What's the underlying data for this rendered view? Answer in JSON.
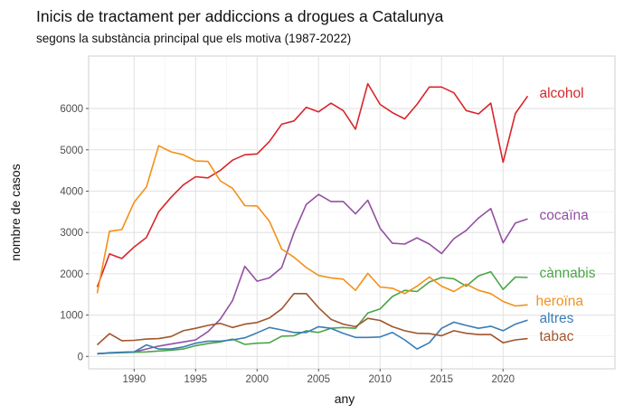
{
  "chart_data": {
    "type": "line",
    "title": "Inicis de tractament per addiccions a drogues a Catalunya",
    "subtitle": "segons la substància principal que els motiva (1987-2022)",
    "xlabel": "any",
    "ylabel": "nombre de casos",
    "xlim": [
      1986.3,
      2029.1
    ],
    "ylim": [
      -300,
      7270
    ],
    "xticks": [
      1990,
      1995,
      2000,
      2005,
      2010,
      2015,
      2020
    ],
    "yticks": [
      0,
      1000,
      2000,
      3000,
      4000,
      5000,
      6000
    ],
    "grid": true,
    "legend": "direct labels at line ends",
    "x": [
      1987,
      1988,
      1989,
      1990,
      1991,
      1992,
      1993,
      1994,
      1995,
      1996,
      1997,
      1998,
      1999,
      2000,
      2001,
      2002,
      2003,
      2004,
      2005,
      2006,
      2007,
      2008,
      2009,
      2010,
      2011,
      2012,
      2013,
      2014,
      2015,
      2016,
      2017,
      2018,
      2019,
      2020,
      2021,
      2022
    ],
    "series": [
      {
        "name": "alcohol",
        "color": "#d7262b",
        "values": [
          1680,
          2480,
          2370,
          2650,
          2880,
          3500,
          3850,
          4150,
          4350,
          4320,
          4500,
          4750,
          4880,
          4900,
          5200,
          5620,
          5700,
          6030,
          5920,
          6130,
          5950,
          5500,
          6600,
          6100,
          5900,
          5750,
          6100,
          6520,
          6520,
          6380,
          5950,
          5870,
          6130,
          4700,
          5880,
          6300
        ]
      },
      {
        "name": "cocaïna",
        "color": "#9350a1",
        "values": [
          70,
          80,
          100,
          110,
          180,
          250,
          300,
          350,
          400,
          600,
          900,
          1350,
          2180,
          1820,
          1900,
          2150,
          3000,
          3680,
          3920,
          3750,
          3750,
          3450,
          3780,
          3100,
          2740,
          2720,
          2870,
          2720,
          2490,
          2850,
          3050,
          3350,
          3580,
          2750,
          3230,
          3330
        ]
      },
      {
        "name": "cànnabis",
        "color": "#4aa546",
        "values": [
          60,
          80,
          90,
          100,
          110,
          130,
          150,
          180,
          260,
          310,
          350,
          420,
          290,
          320,
          330,
          490,
          500,
          620,
          580,
          680,
          700,
          680,
          1050,
          1150,
          1450,
          1600,
          1570,
          1800,
          1910,
          1880,
          1700,
          1950,
          2050,
          1620,
          1920,
          1910
        ]
      },
      {
        "name": "heroïna",
        "color": "#f39018",
        "values": [
          1530,
          3030,
          3070,
          3730,
          4100,
          5100,
          4950,
          4880,
          4730,
          4720,
          4250,
          4070,
          3650,
          3640,
          3270,
          2600,
          2400,
          2150,
          1960,
          1900,
          1870,
          1600,
          2010,
          1680,
          1650,
          1520,
          1700,
          1920,
          1700,
          1570,
          1750,
          1600,
          1520,
          1330,
          1220,
          1250
        ]
      },
      {
        "name": "altres",
        "color": "#3a7db5",
        "values": [
          60,
          90,
          100,
          110,
          280,
          180,
          180,
          230,
          320,
          370,
          370,
          400,
          450,
          570,
          700,
          640,
          580,
          580,
          720,
          680,
          560,
          460,
          460,
          470,
          580,
          400,
          180,
          330,
          680,
          830,
          750,
          680,
          730,
          620,
          780,
          880
        ]
      },
      {
        "name": "tabac",
        "color": "#a0562d",
        "values": [
          280,
          550,
          380,
          390,
          420,
          430,
          480,
          620,
          680,
          750,
          800,
          700,
          780,
          820,
          930,
          1150,
          1520,
          1520,
          1180,
          900,
          780,
          720,
          920,
          870,
          720,
          620,
          560,
          550,
          500,
          620,
          560,
          530,
          530,
          330,
          400,
          430
        ]
      }
    ]
  }
}
